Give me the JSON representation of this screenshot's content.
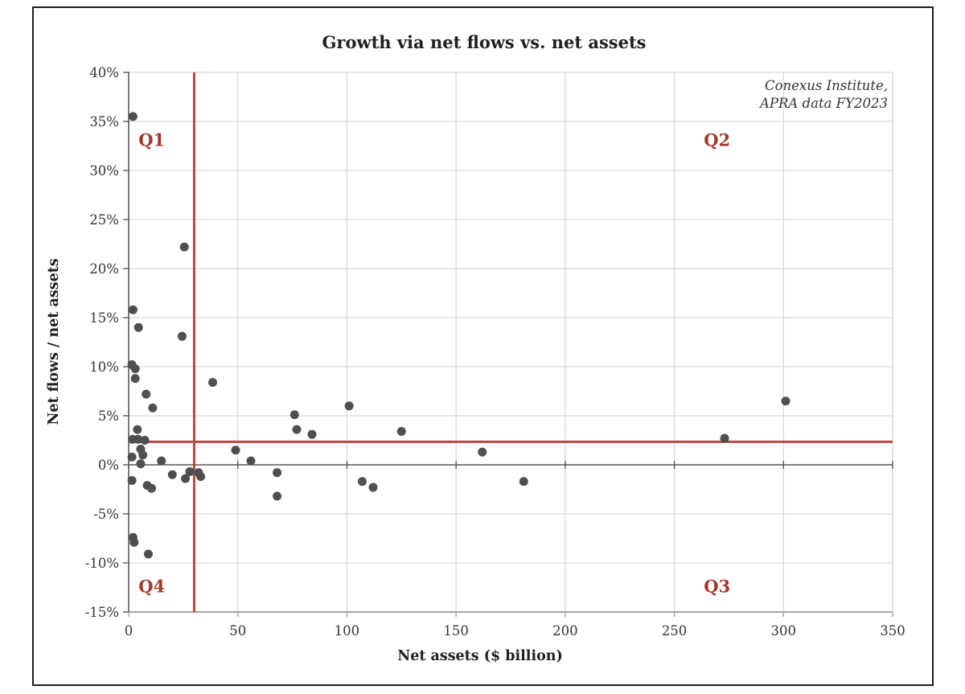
{
  "chart_data": {
    "type": "scatter",
    "title": "Growth via net flows vs. net assets",
    "xlabel": "Net assets ($ billion)",
    "ylabel": "Net flows / net assets",
    "annotation": {
      "line1": "Conexus Institute,",
      "line2": "APRA data FY2023"
    },
    "xlim": [
      0,
      350
    ],
    "ylim_pct": [
      -15,
      40
    ],
    "x_ticks": [
      0,
      50,
      100,
      150,
      200,
      250,
      300,
      350
    ],
    "y_ticks_pct": [
      40,
      35,
      30,
      25,
      20,
      15,
      10,
      5,
      0,
      -5,
      -10,
      -15
    ],
    "y_tick_suffix": "%",
    "grid": true,
    "legend": "none",
    "reference_lines": {
      "vertical_x": 30,
      "horizontal_y_pct": 2.35
    },
    "quadrants": [
      {
        "label": "Q1",
        "x": 4.5,
        "y_pct": 32.5
      },
      {
        "label": "Q2",
        "x": 263.5,
        "y_pct": 32.5
      },
      {
        "label": "Q3",
        "x": 263.5,
        "y_pct": -13.0
      },
      {
        "label": "Q4",
        "x": 4.5,
        "y_pct": -13.0
      }
    ],
    "points_unit": {
      "x": "$ billion net assets",
      "y": "net flows / net assets, %"
    },
    "points": [
      [
        2,
        35.5
      ],
      [
        25.5,
        22.2
      ],
      [
        2,
        15.8
      ],
      [
        4.5,
        14.0
      ],
      [
        24.5,
        13.1
      ],
      [
        1.5,
        10.2
      ],
      [
        3,
        9.8
      ],
      [
        3,
        8.8
      ],
      [
        38.5,
        8.4
      ],
      [
        8,
        7.2
      ],
      [
        11,
        5.8
      ],
      [
        4,
        3.6
      ],
      [
        76,
        5.1
      ],
      [
        77,
        3.6
      ],
      [
        84,
        3.1
      ],
      [
        101,
        6.0
      ],
      [
        125,
        3.4
      ],
      [
        162,
        1.3
      ],
      [
        273,
        2.7
      ],
      [
        301,
        6.5
      ],
      [
        49,
        1.5
      ],
      [
        56,
        0.4
      ],
      [
        1.8,
        2.6
      ],
      [
        4.3,
        2.6
      ],
      [
        7.4,
        2.5
      ],
      [
        5.5,
        1.6
      ],
      [
        6.5,
        1.0
      ],
      [
        1.5,
        0.8
      ],
      [
        5.5,
        0.1
      ],
      [
        15,
        0.4
      ],
      [
        1.5,
        -1.6
      ],
      [
        8.5,
        -2.1
      ],
      [
        10.5,
        -2.4
      ],
      [
        20,
        -1.0
      ],
      [
        26,
        -1.4
      ],
      [
        28,
        -0.7
      ],
      [
        32,
        -0.8
      ],
      [
        33,
        -1.2
      ],
      [
        68,
        -0.8
      ],
      [
        68,
        -3.2
      ],
      [
        107,
        -1.7
      ],
      [
        112,
        -2.3
      ],
      [
        181,
        -1.7
      ],
      [
        2,
        -7.4
      ],
      [
        2.5,
        -7.9
      ],
      [
        9,
        -9.1
      ]
    ],
    "colors": {
      "point": "#4f4f4f",
      "grid": "#d9d9d9",
      "axis": "#595959",
      "plot_bottom_line": "#a6a6a6",
      "reference_line": "#b9493f",
      "quadrant_label": "#a5372b",
      "text": "#2b2b2b"
    }
  }
}
